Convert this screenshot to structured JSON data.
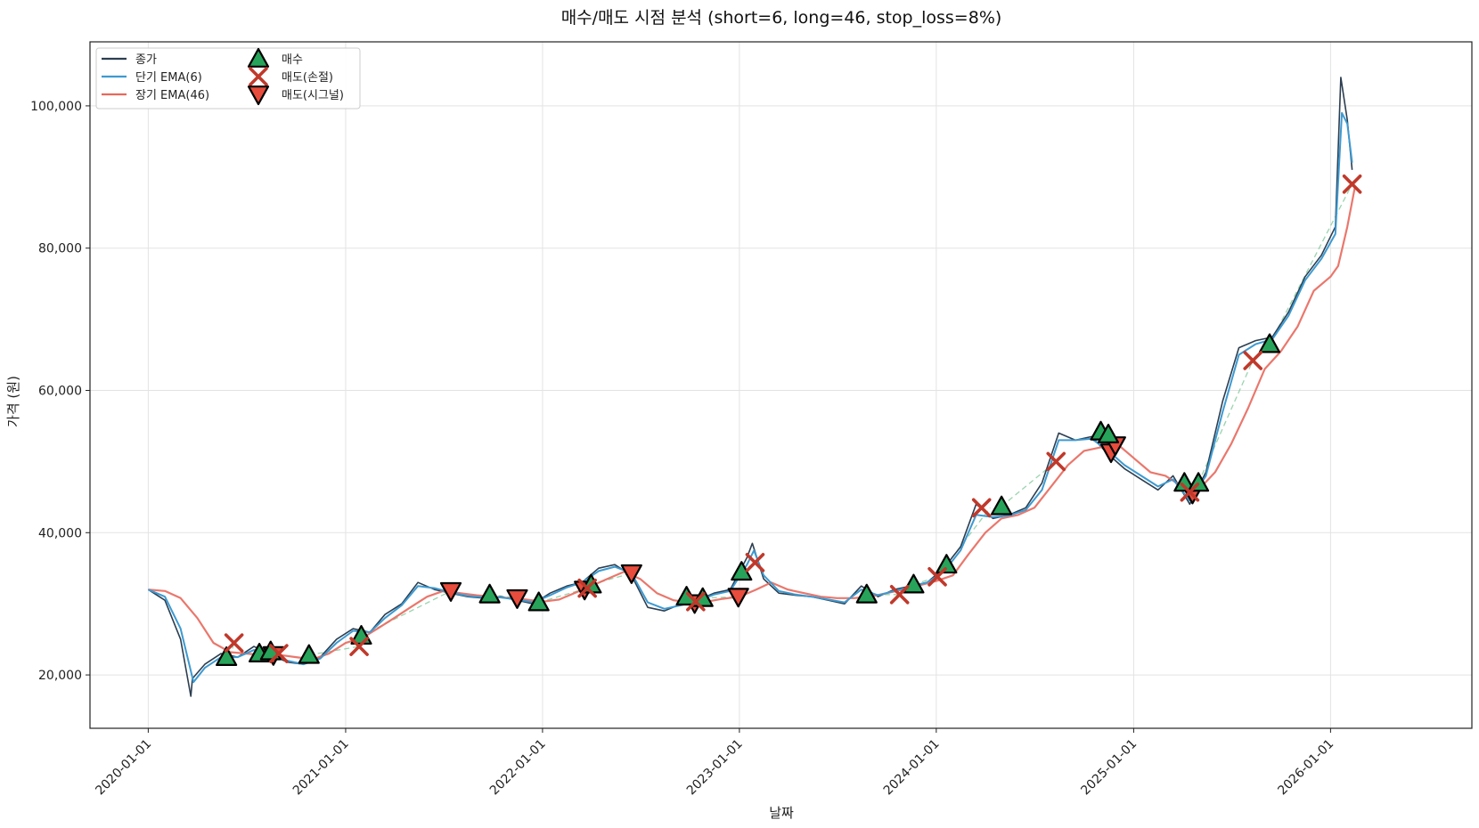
{
  "chart_data": {
    "type": "line",
    "title": "매수/매도 시점 분석 (short=6, long=46, stop_loss=8%)",
    "xlabel": "날짜",
    "ylabel": "가격 (원)",
    "xlim": [
      "2019-09-15",
      "2026-09-20"
    ],
    "ylim": [
      12500,
      109000
    ],
    "x_ticks": [
      "2020-01-01",
      "2021-01-01",
      "2022-01-01",
      "2023-01-01",
      "2024-01-01",
      "2025-01-01",
      "2026-01-01"
    ],
    "y_ticks": [
      20000,
      40000,
      60000,
      80000,
      100000
    ],
    "y_tick_labels": [
      "20,000",
      "40,000",
      "60,000",
      "80,000",
      "100,000"
    ],
    "grid": true,
    "legend_position": "top-left",
    "colors": {
      "close": "#2c3e50",
      "ema_short": "#3d9ad1",
      "ema_long": "#e8685c",
      "buy": "#27a35a",
      "sell_stop": "#c0392b",
      "sell_signal": "#e74c3c",
      "trade_line": "#7fc99a"
    },
    "series": [
      {
        "name": "종가",
        "x": [
          "2020-01-01",
          "2020-02-01",
          "2020-03-01",
          "2020-03-20",
          "2020-03-23",
          "2020-04-15",
          "2020-05-15",
          "2020-06-15",
          "2020-07-15",
          "2020-08-15",
          "2020-09-15",
          "2020-10-15",
          "2020-11-15",
          "2020-12-15",
          "2021-01-15",
          "2021-02-15",
          "2021-03-15",
          "2021-04-15",
          "2021-05-15",
          "2021-06-15",
          "2021-07-15",
          "2021-08-15",
          "2021-09-15",
          "2021-10-15",
          "2021-11-15",
          "2021-12-15",
          "2022-01-15",
          "2022-02-15",
          "2022-03-15",
          "2022-04-15",
          "2022-05-15",
          "2022-06-15",
          "2022-07-15",
          "2022-08-15",
          "2022-09-15",
          "2022-10-15",
          "2022-11-15",
          "2022-12-15",
          "2023-01-15",
          "2023-01-25",
          "2023-02-15",
          "2023-03-15",
          "2023-04-15",
          "2023-05-15",
          "2023-06-15",
          "2023-07-15",
          "2023-08-15",
          "2023-09-15",
          "2023-10-15",
          "2023-11-15",
          "2023-12-15",
          "2024-01-15",
          "2024-02-15",
          "2024-03-15",
          "2024-04-15",
          "2024-05-15",
          "2024-06-15",
          "2024-07-15",
          "2024-08-15",
          "2024-09-15",
          "2024-10-15",
          "2024-11-15",
          "2024-12-15",
          "2025-01-15",
          "2025-02-15",
          "2025-03-15",
          "2025-04-15",
          "2025-05-15",
          "2025-06-15",
          "2025-07-15",
          "2025-08-15",
          "2025-09-15",
          "2025-10-15",
          "2025-11-15",
          "2025-12-15",
          "2026-01-10",
          "2026-01-20",
          "2026-02-01",
          "2026-02-10"
        ],
        "values": [
          32000,
          30500,
          25000,
          17000,
          19500,
          21500,
          23000,
          22500,
          24000,
          22800,
          21800,
          21500,
          22500,
          25000,
          26500,
          26000,
          28500,
          30000,
          33000,
          32000,
          31500,
          31000,
          30800,
          31000,
          30500,
          30000,
          31500,
          32500,
          33000,
          35000,
          35500,
          34000,
          29500,
          29000,
          30000,
          30500,
          31500,
          32000,
          36500,
          38500,
          33500,
          31500,
          31200,
          31000,
          30500,
          30000,
          32500,
          31000,
          32000,
          32500,
          33000,
          35000,
          38000,
          44000,
          42000,
          42500,
          43500,
          47000,
          54000,
          53000,
          53500,
          51000,
          49000,
          47500,
          46000,
          48000,
          44000,
          48500,
          58500,
          66000,
          67000,
          67500,
          71000,
          76000,
          79000,
          83000,
          104000,
          98000,
          91000
        ]
      },
      {
        "name": "단기 EMA(6)",
        "x": [
          "2020-01-01",
          "2020-02-01",
          "2020-03-01",
          "2020-03-25",
          "2020-04-15",
          "2020-05-15",
          "2020-06-15",
          "2020-07-15",
          "2020-08-15",
          "2020-09-15",
          "2020-10-15",
          "2020-11-15",
          "2020-12-15",
          "2021-01-15",
          "2021-02-15",
          "2021-03-15",
          "2021-04-15",
          "2021-05-15",
          "2021-06-15",
          "2021-07-15",
          "2021-08-15",
          "2021-09-15",
          "2021-10-15",
          "2021-11-15",
          "2021-12-15",
          "2022-01-15",
          "2022-02-15",
          "2022-03-15",
          "2022-04-15",
          "2022-05-15",
          "2022-06-15",
          "2022-07-15",
          "2022-08-15",
          "2022-09-15",
          "2022-10-15",
          "2022-11-15",
          "2022-12-15",
          "2023-01-15",
          "2023-01-28",
          "2023-02-15",
          "2023-03-15",
          "2023-04-15",
          "2023-05-15",
          "2023-06-15",
          "2023-07-15",
          "2023-08-15",
          "2023-09-15",
          "2023-10-15",
          "2023-11-15",
          "2023-12-15",
          "2024-01-15",
          "2024-02-15",
          "2024-03-15",
          "2024-04-15",
          "2024-05-15",
          "2024-06-15",
          "2024-07-15",
          "2024-08-15",
          "2024-09-15",
          "2024-10-15",
          "2024-11-15",
          "2024-12-15",
          "2025-01-15",
          "2025-02-15",
          "2025-03-15",
          "2025-04-15",
          "2025-05-15",
          "2025-06-15",
          "2025-07-15",
          "2025-08-15",
          "2025-09-15",
          "2025-10-15",
          "2025-11-15",
          "2025-12-15",
          "2026-01-10",
          "2026-01-22",
          "2026-02-01",
          "2026-02-10"
        ],
        "values": [
          32000,
          31000,
          26500,
          19000,
          21000,
          22500,
          22500,
          23500,
          23000,
          22000,
          21500,
          22300,
          24500,
          26200,
          26000,
          28000,
          29800,
          32500,
          32200,
          31600,
          31100,
          30900,
          30900,
          30600,
          30200,
          31200,
          32300,
          33000,
          34600,
          35200,
          34300,
          30200,
          29300,
          29800,
          30400,
          31300,
          31800,
          35500,
          37500,
          34000,
          31800,
          31300,
          31000,
          30600,
          30200,
          32000,
          31200,
          31800,
          32400,
          33000,
          34500,
          37500,
          42500,
          42200,
          42400,
          43200,
          46000,
          53000,
          53000,
          53200,
          51500,
          49500,
          48000,
          46500,
          47500,
          44500,
          48000,
          57000,
          65000,
          66500,
          67200,
          70500,
          75500,
          78500,
          82000,
          99000,
          97500,
          92000
        ]
      },
      {
        "name": "장기 EMA(46)",
        "x": [
          "2020-01-01",
          "2020-02-01",
          "2020-03-01",
          "2020-04-01",
          "2020-05-01",
          "2020-06-01",
          "2020-07-01",
          "2020-08-01",
          "2020-09-01",
          "2020-10-01",
          "2020-11-01",
          "2020-12-01",
          "2021-01-01",
          "2021-02-01",
          "2021-03-01",
          "2021-04-01",
          "2021-05-01",
          "2021-06-01",
          "2021-07-01",
          "2021-08-01",
          "2021-09-01",
          "2021-10-01",
          "2021-11-01",
          "2021-12-01",
          "2022-01-01",
          "2022-02-01",
          "2022-03-01",
          "2022-04-01",
          "2022-05-01",
          "2022-06-01",
          "2022-07-01",
          "2022-08-01",
          "2022-09-01",
          "2022-10-01",
          "2022-11-01",
          "2022-12-01",
          "2023-01-01",
          "2023-02-01",
          "2023-03-01",
          "2023-04-01",
          "2023-05-01",
          "2023-06-01",
          "2023-07-01",
          "2023-08-01",
          "2023-09-01",
          "2023-10-01",
          "2023-11-01",
          "2023-12-01",
          "2024-01-01",
          "2024-02-01",
          "2024-03-01",
          "2024-04-01",
          "2024-05-01",
          "2024-06-01",
          "2024-07-01",
          "2024-08-01",
          "2024-09-01",
          "2024-10-01",
          "2024-11-01",
          "2024-12-01",
          "2025-01-01",
          "2025-02-01",
          "2025-03-01",
          "2025-04-01",
          "2025-05-01",
          "2025-06-01",
          "2025-07-01",
          "2025-08-01",
          "2025-09-01",
          "2025-10-01",
          "2025-11-01",
          "2025-12-01",
          "2026-01-01",
          "2026-01-15",
          "2026-02-01",
          "2026-02-15"
        ],
        "values": [
          32000,
          31800,
          30800,
          28000,
          24500,
          23200,
          23000,
          22800,
          22800,
          22500,
          22200,
          23000,
          24500,
          25200,
          26500,
          28000,
          29500,
          31000,
          31800,
          31500,
          31200,
          31000,
          30800,
          30600,
          30300,
          30600,
          31500,
          32500,
          33500,
          34500,
          33500,
          31500,
          30500,
          30200,
          30300,
          30700,
          31000,
          32000,
          33000,
          32000,
          31500,
          31000,
          30800,
          30800,
          31000,
          31500,
          32000,
          32600,
          33200,
          34000,
          37000,
          40000,
          42000,
          42500,
          43500,
          46500,
          49500,
          51500,
          52000,
          52500,
          50500,
          48500,
          48000,
          46500,
          46000,
          48500,
          52500,
          57500,
          63000,
          65500,
          69000,
          74000,
          76000,
          77500,
          83000,
          88500
        ]
      }
    ],
    "trade_paths": [
      {
        "x": [
          "2020-06-01",
          "2020-06-08"
        ],
        "values": [
          22500,
          24500
        ]
      },
      {
        "x": [
          "2020-10-25",
          "2021-01-26"
        ],
        "values": [
          22800,
          24000
        ]
      },
      {
        "x": [
          "2021-01-30",
          "2021-07-15"
        ],
        "values": [
          25500,
          31800
        ]
      },
      {
        "x": [
          "2021-09-25",
          "2021-11-15"
        ],
        "values": [
          31300,
          30800
        ]
      },
      {
        "x": [
          "2021-12-25",
          "2022-03-25"
        ],
        "values": [
          30200,
          32200
        ]
      },
      {
        "x": [
          "2022-04-01",
          "2022-06-15"
        ],
        "values": [
          32700,
          34300
        ]
      },
      {
        "x": [
          "2022-10-25",
          "2022-12-30"
        ],
        "values": [
          30800,
          31000
        ]
      },
      {
        "x": [
          "2023-01-05",
          "2023-01-30"
        ],
        "values": [
          34500,
          35800
        ]
      },
      {
        "x": [
          "2023-08-25",
          "2023-10-25"
        ],
        "values": [
          31300,
          31300
        ]
      },
      {
        "x": [
          "2023-11-20",
          "2024-01-03"
        ],
        "values": [
          32700,
          33800
        ]
      },
      {
        "x": [
          "2024-01-20",
          "2024-04-10"
        ],
        "values": [
          35500,
          43500
        ]
      },
      {
        "x": [
          "2024-05-01",
          "2024-08-10"
        ],
        "values": [
          43700,
          50000
        ]
      },
      {
        "x": [
          "2024-11-01",
          "2024-11-20"
        ],
        "values": [
          54000,
          51500
        ]
      },
      {
        "x": [
          "2025-04-05",
          "2025-04-20"
        ],
        "values": [
          46500,
          45500
        ]
      },
      {
        "x": [
          "2025-05-01",
          "2025-08-10"
        ],
        "values": [
          47000,
          64200
        ]
      },
      {
        "x": [
          "2025-09-10",
          "2026-02-10"
        ],
        "values": [
          66500,
          89000
        ]
      }
    ],
    "legend": [
      "종가",
      "단기 EMA(6)",
      "장기 EMA(46)",
      "매수",
      "매도(손절)",
      "매도(시그널)"
    ],
    "buy_points": {
      "name": "매수",
      "x": [
        "2020-05-25",
        "2020-07-25",
        "2020-08-15",
        "2020-10-25",
        "2021-01-30",
        "2021-09-25",
        "2021-12-25",
        "2022-04-01",
        "2022-09-25",
        "2022-10-25",
        "2023-01-05",
        "2023-08-25",
        "2023-11-20",
        "2024-01-20",
        "2024-05-01",
        "2024-11-01",
        "2024-11-15",
        "2025-04-05",
        "2025-05-01",
        "2025-09-10"
      ],
      "values": [
        22500,
        23000,
        23300,
        22800,
        25500,
        31300,
        30200,
        32700,
        31000,
        30800,
        34500,
        31300,
        32700,
        35500,
        43700,
        54200,
        53800,
        47000,
        47000,
        66500
      ]
    },
    "sell_stop_points": {
      "name": "매도(손절)",
      "x": [
        "2020-06-08",
        "2020-08-30",
        "2021-01-26",
        "2022-03-25",
        "2022-10-12",
        "2023-01-30",
        "2023-10-25",
        "2024-01-03",
        "2024-03-25",
        "2024-08-10",
        "2025-04-15",
        "2025-08-10",
        "2026-02-10"
      ],
      "values": [
        24500,
        23000,
        24000,
        32200,
        30300,
        35800,
        31300,
        33800,
        43500,
        50000,
        45700,
        64200,
        89000
      ]
    },
    "sell_signal_points": {
      "name": "매도(시그널)",
      "x": [
        "2020-08-20",
        "2021-07-15",
        "2021-11-15",
        "2022-03-20",
        "2022-06-15",
        "2022-10-10",
        "2022-12-30",
        "2024-11-20",
        "2024-11-28",
        "2025-04-20"
      ],
      "values": [
        22800,
        31800,
        30800,
        32000,
        34300,
        30100,
        31000,
        51300,
        52300,
        45500
      ]
    }
  }
}
